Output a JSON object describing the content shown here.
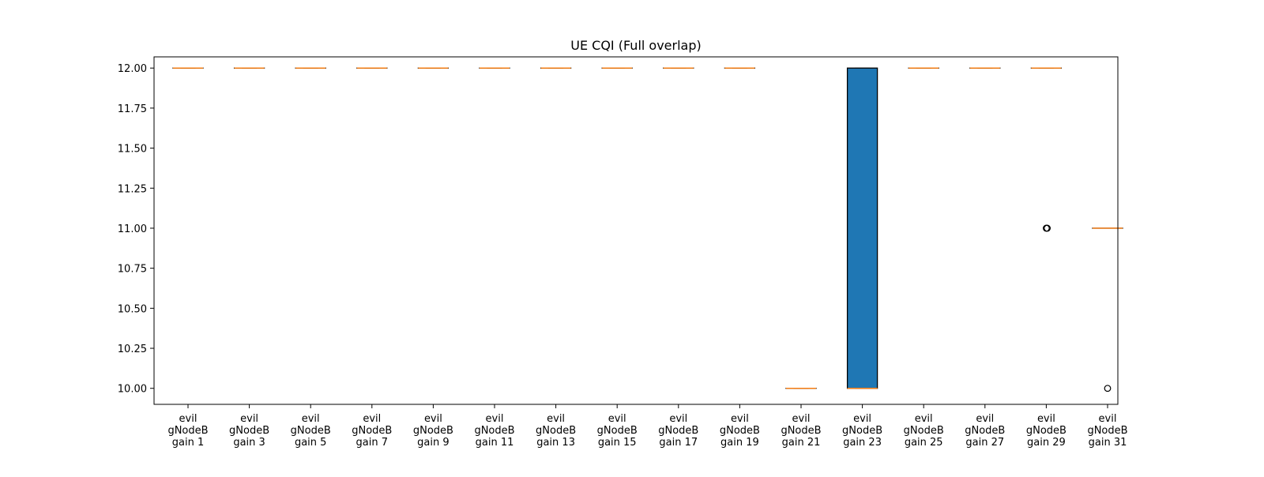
{
  "chart_data": {
    "type": "box",
    "title": "UE CQI (Full overlap)",
    "xlabel": "",
    "ylabel": "",
    "ylim": [
      9.9,
      12.07
    ],
    "yticks": [
      10.0,
      10.25,
      10.5,
      10.75,
      11.0,
      11.25,
      11.5,
      11.75,
      12.0
    ],
    "ytick_labels": [
      "10.00",
      "10.25",
      "10.50",
      "10.75",
      "11.00",
      "11.25",
      "11.50",
      "11.75",
      "12.00"
    ],
    "grid": false,
    "legend": "none",
    "colors": {
      "box_fill": "#1f77b4",
      "median": "#ff7f0e",
      "edge": "#000000",
      "background": "#ffffff"
    },
    "categories": [
      [
        "evil",
        "gNodeB",
        "gain 1"
      ],
      [
        "evil",
        "gNodeB",
        "gain 3"
      ],
      [
        "evil",
        "gNodeB",
        "gain 5"
      ],
      [
        "evil",
        "gNodeB",
        "gain 7"
      ],
      [
        "evil",
        "gNodeB",
        "gain 9"
      ],
      [
        "evil",
        "gNodeB",
        "gain 11"
      ],
      [
        "evil",
        "gNodeB",
        "gain 13"
      ],
      [
        "evil",
        "gNodeB",
        "gain 15"
      ],
      [
        "evil",
        "gNodeB",
        "gain 17"
      ],
      [
        "evil",
        "gNodeB",
        "gain 19"
      ],
      [
        "evil",
        "gNodeB",
        "gain 21"
      ],
      [
        "evil",
        "gNodeB",
        "gain 23"
      ],
      [
        "evil",
        "gNodeB",
        "gain 25"
      ],
      [
        "evil",
        "gNodeB",
        "gain 27"
      ],
      [
        "evil",
        "gNodeB",
        "gain 29"
      ],
      [
        "evil",
        "gNodeB",
        "gain 31"
      ]
    ],
    "boxes": [
      {
        "q1": 12,
        "median": 12,
        "q3": 12,
        "whislo": 12,
        "whishi": 12,
        "fliers": []
      },
      {
        "q1": 12,
        "median": 12,
        "q3": 12,
        "whislo": 12,
        "whishi": 12,
        "fliers": []
      },
      {
        "q1": 12,
        "median": 12,
        "q3": 12,
        "whislo": 12,
        "whishi": 12,
        "fliers": []
      },
      {
        "q1": 12,
        "median": 12,
        "q3": 12,
        "whislo": 12,
        "whishi": 12,
        "fliers": []
      },
      {
        "q1": 12,
        "median": 12,
        "q3": 12,
        "whislo": 12,
        "whishi": 12,
        "fliers": []
      },
      {
        "q1": 12,
        "median": 12,
        "q3": 12,
        "whislo": 12,
        "whishi": 12,
        "fliers": []
      },
      {
        "q1": 12,
        "median": 12,
        "q3": 12,
        "whislo": 12,
        "whishi": 12,
        "fliers": []
      },
      {
        "q1": 12,
        "median": 12,
        "q3": 12,
        "whislo": 12,
        "whishi": 12,
        "fliers": []
      },
      {
        "q1": 12,
        "median": 12,
        "q3": 12,
        "whislo": 12,
        "whishi": 12,
        "fliers": []
      },
      {
        "q1": 12,
        "median": 12,
        "q3": 12,
        "whislo": 12,
        "whishi": 12,
        "fliers": []
      },
      {
        "q1": 10,
        "median": 10,
        "q3": 10,
        "whislo": 10,
        "whishi": 10,
        "fliers": []
      },
      {
        "q1": 10,
        "median": 10,
        "q3": 12,
        "whislo": 10,
        "whishi": 12,
        "fliers": []
      },
      {
        "q1": 12,
        "median": 12,
        "q3": 12,
        "whislo": 12,
        "whishi": 12,
        "fliers": []
      },
      {
        "q1": 12,
        "median": 12,
        "q3": 12,
        "whislo": 12,
        "whishi": 12,
        "fliers": []
      },
      {
        "q1": 12,
        "median": 12,
        "q3": 12,
        "whislo": 12,
        "whishi": 12,
        "fliers": [
          11,
          11
        ]
      },
      {
        "q1": 11,
        "median": 11,
        "q3": 11,
        "whislo": 11,
        "whishi": 11,
        "fliers": [
          10
        ]
      }
    ]
  }
}
